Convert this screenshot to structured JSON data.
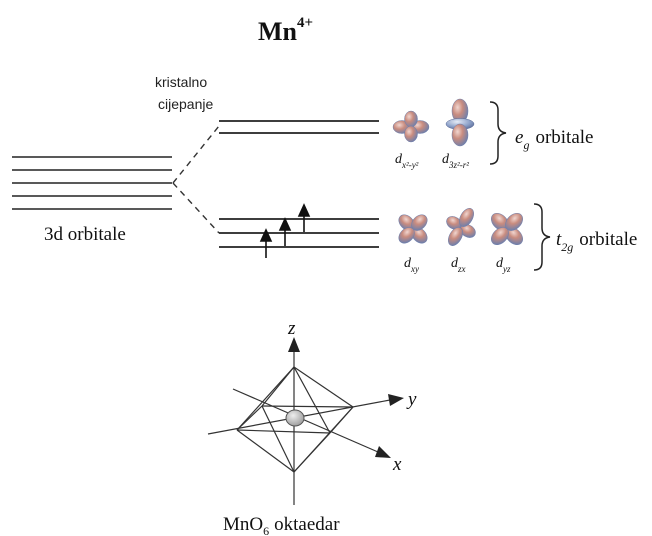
{
  "title": {
    "base": "Mn",
    "superscript": "4+"
  },
  "crystal_split_label": {
    "line1": "kristalno",
    "line2": "cijepanje"
  },
  "left_group": {
    "label": "3d orbitale",
    "level_count": 5
  },
  "eg_group": {
    "symbol": "e",
    "subscript": "g",
    "suffix": "orbitale",
    "orbitals": [
      {
        "base": "d",
        "sub": "x²-y²"
      },
      {
        "base": "d",
        "sub": "3z²-r²"
      }
    ]
  },
  "t2g_group": {
    "symbol": "t",
    "subscript": "2g",
    "suffix": "orbitale",
    "electron_count": 3,
    "orbitals": [
      {
        "base": "d",
        "sub": "xy"
      },
      {
        "base": "d",
        "sub": "zx"
      },
      {
        "base": "d",
        "sub": "yz"
      }
    ]
  },
  "octahedron": {
    "axes": {
      "z": "z",
      "y": "y",
      "x": "x"
    },
    "caption": {
      "base": "MnO",
      "sub": "6",
      "suffix": "oktaedar"
    }
  },
  "colors": {
    "line": "#222222",
    "lobe_warm": "#c98c7f",
    "lobe_cool": "#7f8fb8",
    "center_atom": "#bdbdbd"
  },
  "icons": {
    "orbital": "d-orbital-lobe-icon",
    "spin_up": "spin-up-arrow-icon"
  }
}
